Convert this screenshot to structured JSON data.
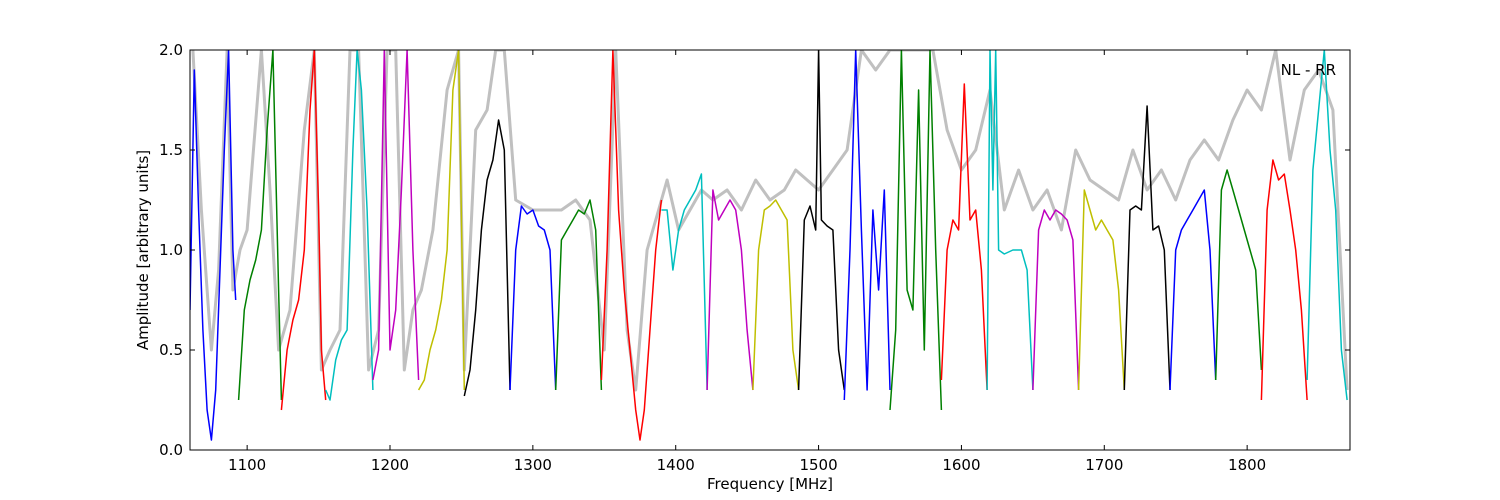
{
  "chart_data": {
    "type": "line",
    "title": "",
    "xlabel": "Frequency [MHz]",
    "ylabel": "Amplitude [arbitrary units]",
    "xlim": [
      1060,
      1872
    ],
    "ylim": [
      0.0,
      2.0
    ],
    "xticks": [
      1100,
      1200,
      1300,
      1400,
      1500,
      1600,
      1700,
      1800
    ],
    "yticks": [
      0.0,
      0.5,
      1.0,
      1.5,
      2.0
    ],
    "ytick_labels": [
      "0.0",
      "0.5",
      "1.0",
      "1.5",
      "2.0"
    ],
    "annotation": "NL - RR",
    "grid": false,
    "background_series_color": "#c0c0c0",
    "segment_color_cycle": [
      "#0000ff",
      "#008000",
      "#ff0000",
      "#00bfbf",
      "#bf00bf",
      "#bfbf00",
      "#000000"
    ],
    "series": [
      {
        "color": "#c0c0c0",
        "x": [
          1062,
          1068,
          1075,
          1080,
          1086,
          1090,
          1095,
          1100,
          1110,
          1116,
          1122,
          1130,
          1140,
          1147,
          1152,
          1158,
          1165,
          1172,
          1178,
          1185,
          1192,
          1198,
          1204,
          1210,
          1216,
          1222,
          1230,
          1240,
          1248,
          1252,
          1260,
          1268,
          1274,
          1280,
          1288,
          1300,
          1312,
          1320,
          1330,
          1340,
          1350,
          1358,
          1366,
          1372,
          1380,
          1388,
          1394,
          1402,
          1410,
          1418,
          1426,
          1436,
          1446,
          1456,
          1466,
          1476,
          1484,
          1492,
          1500,
          1510,
          1520,
          1530,
          1540,
          1550,
          1560,
          1570,
          1580,
          1590,
          1600,
          1610,
          1620,
          1630,
          1640,
          1650,
          1660,
          1670,
          1680,
          1690,
          1700,
          1710,
          1720,
          1730,
          1740,
          1750,
          1760,
          1770,
          1780,
          1790,
          1800,
          1810,
          1820,
          1830,
          1840,
          1850,
          1860,
          1870
        ],
        "y": [
          2.0,
          1.2,
          0.5,
          0.9,
          2.0,
          0.8,
          1.0,
          1.1,
          2.0,
          1.3,
          0.5,
          0.7,
          1.6,
          2.0,
          0.4,
          0.5,
          0.6,
          2.0,
          2.0,
          0.4,
          0.6,
          2.0,
          2.0,
          0.4,
          0.7,
          0.8,
          1.1,
          1.8,
          2.0,
          0.4,
          1.6,
          1.7,
          2.0,
          2.0,
          1.25,
          1.2,
          1.2,
          1.2,
          1.25,
          1.15,
          0.5,
          2.0,
          0.6,
          0.3,
          1.0,
          1.2,
          1.35,
          1.1,
          1.2,
          1.3,
          1.25,
          1.3,
          1.2,
          1.35,
          1.25,
          1.3,
          1.4,
          1.35,
          1.3,
          1.4,
          1.5,
          2.0,
          1.9,
          2.0,
          2.0,
          2.0,
          2.0,
          1.6,
          1.4,
          1.5,
          1.8,
          1.2,
          1.4,
          1.2,
          1.3,
          1.1,
          1.5,
          1.35,
          1.3,
          1.25,
          1.5,
          1.3,
          1.4,
          1.25,
          1.45,
          1.55,
          1.45,
          1.65,
          1.8,
          1.7,
          2.0,
          1.45,
          1.8,
          1.9,
          1.7,
          0.3
        ]
      },
      {
        "color": "#0000ff",
        "x": [
          1060,
          1063,
          1066,
          1069,
          1072,
          1075,
          1078,
          1081,
          1084,
          1087,
          1090,
          1092
        ],
        "y": [
          0.7,
          1.9,
          1.2,
          0.6,
          0.2,
          0.05,
          0.3,
          0.9,
          1.5,
          2.0,
          1.0,
          0.75
        ]
      },
      {
        "color": "#008000",
        "x": [
          1094,
          1098,
          1102,
          1106,
          1110,
          1114,
          1118,
          1122,
          1124
        ],
        "y": [
          0.25,
          0.7,
          0.85,
          0.95,
          1.1,
          1.6,
          2.0,
          0.8,
          0.25
        ]
      },
      {
        "color": "#ff0000",
        "x": [
          1124,
          1128,
          1132,
          1136,
          1140,
          1144,
          1147,
          1150,
          1152,
          1155
        ],
        "y": [
          0.2,
          0.5,
          0.65,
          0.75,
          1.0,
          1.7,
          2.0,
          1.2,
          0.5,
          0.25
        ]
      },
      {
        "color": "#00bfbf",
        "x": [
          1155,
          1158,
          1162,
          1166,
          1170,
          1174,
          1177,
          1180,
          1184,
          1188
        ],
        "y": [
          0.3,
          0.25,
          0.45,
          0.55,
          0.6,
          1.5,
          2.0,
          1.8,
          1.2,
          0.3
        ]
      },
      {
        "color": "#bf00bf",
        "x": [
          1188,
          1192,
          1196,
          1200,
          1204,
          1208,
          1212,
          1216,
          1220
        ],
        "y": [
          0.35,
          0.5,
          2.0,
          0.5,
          0.7,
          1.3,
          2.0,
          1.0,
          0.35
        ]
      },
      {
        "color": "#bfbf00",
        "x": [
          1220,
          1224,
          1228,
          1232,
          1236,
          1240,
          1244,
          1248,
          1252
        ],
        "y": [
          0.3,
          0.35,
          0.5,
          0.6,
          0.75,
          1.0,
          1.8,
          2.0,
          0.3
        ]
      },
      {
        "color": "#000000",
        "x": [
          1252,
          1256,
          1260,
          1264,
          1268,
          1272,
          1276,
          1280,
          1284
        ],
        "y": [
          0.27,
          0.4,
          0.7,
          1.1,
          1.35,
          1.45,
          1.65,
          1.5,
          0.3
        ]
      },
      {
        "color": "#0000ff",
        "x": [
          1284,
          1288,
          1292,
          1296,
          1300,
          1304,
          1308,
          1312,
          1316
        ],
        "y": [
          0.3,
          1.0,
          1.22,
          1.18,
          1.2,
          1.12,
          1.1,
          1.0,
          0.3
        ]
      },
      {
        "color": "#008000",
        "x": [
          1316,
          1320,
          1324,
          1328,
          1332,
          1336,
          1340,
          1344,
          1348
        ],
        "y": [
          0.3,
          1.05,
          1.1,
          1.15,
          1.2,
          1.18,
          1.25,
          1.1,
          0.3
        ]
      },
      {
        "color": "#ff0000",
        "x": [
          1348,
          1352,
          1356,
          1360,
          1364,
          1368,
          1372,
          1375,
          1378,
          1382,
          1386,
          1390
        ],
        "y": [
          0.35,
          1.0,
          2.0,
          1.2,
          0.8,
          0.5,
          0.2,
          0.05,
          0.2,
          0.6,
          1.0,
          1.25
        ]
      },
      {
        "color": "#00bfbf",
        "x": [
          1390,
          1394,
          1398,
          1402,
          1406,
          1410,
          1414,
          1418,
          1422
        ],
        "y": [
          1.2,
          1.2,
          0.9,
          1.1,
          1.2,
          1.25,
          1.3,
          1.38,
          0.3
        ]
      },
      {
        "color": "#bf00bf",
        "x": [
          1422,
          1426,
          1430,
          1434,
          1438,
          1442,
          1446,
          1450,
          1454
        ],
        "y": [
          0.3,
          1.3,
          1.15,
          1.2,
          1.25,
          1.2,
          1.0,
          0.6,
          0.3
        ]
      },
      {
        "color": "#bfbf00",
        "x": [
          1454,
          1458,
          1462,
          1466,
          1470,
          1474,
          1478,
          1482,
          1486
        ],
        "y": [
          0.3,
          1.0,
          1.2,
          1.22,
          1.25,
          1.2,
          1.15,
          0.5,
          0.3
        ]
      },
      {
        "color": "#000000",
        "x": [
          1486,
          1490,
          1494,
          1498,
          1500,
          1502,
          1506,
          1510,
          1514,
          1518
        ],
        "y": [
          0.3,
          1.15,
          1.22,
          1.1,
          2.0,
          1.15,
          1.12,
          1.1,
          0.5,
          0.3
        ]
      },
      {
        "color": "#0000ff",
        "x": [
          1518,
          1522,
          1526,
          1530,
          1534,
          1538,
          1542,
          1546,
          1550
        ],
        "y": [
          0.25,
          1.0,
          2.0,
          1.1,
          0.3,
          1.2,
          0.8,
          1.3,
          0.3
        ]
      },
      {
        "color": "#008000",
        "x": [
          1550,
          1554,
          1558,
          1562,
          1566,
          1570,
          1574,
          1578,
          1582,
          1586
        ],
        "y": [
          0.2,
          0.6,
          2.0,
          0.8,
          0.7,
          1.8,
          0.5,
          2.0,
          1.0,
          0.2
        ]
      },
      {
        "color": "#ff0000",
        "x": [
          1586,
          1590,
          1594,
          1598,
          1602,
          1606,
          1610,
          1614,
          1618
        ],
        "y": [
          0.35,
          1.0,
          1.15,
          1.1,
          1.83,
          1.15,
          1.2,
          0.9,
          0.3
        ]
      },
      {
        "color": "#00bfbf",
        "x": [
          1618,
          1620,
          1622,
          1624,
          1626,
          1630,
          1636,
          1642,
          1646,
          1650
        ],
        "y": [
          0.3,
          2.0,
          1.3,
          2.0,
          1.0,
          0.98,
          1.0,
          1.0,
          0.9,
          0.3
        ]
      },
      {
        "color": "#bf00bf",
        "x": [
          1650,
          1654,
          1658,
          1662,
          1666,
          1670,
          1674,
          1678,
          1682
        ],
        "y": [
          0.3,
          1.1,
          1.2,
          1.15,
          1.2,
          1.18,
          1.15,
          1.05,
          0.3
        ]
      },
      {
        "color": "#bfbf00",
        "x": [
          1682,
          1686,
          1690,
          1694,
          1698,
          1702,
          1706,
          1710,
          1714
        ],
        "y": [
          0.3,
          1.3,
          1.2,
          1.1,
          1.15,
          1.1,
          1.05,
          0.8,
          0.3
        ]
      },
      {
        "color": "#000000",
        "x": [
          1714,
          1718,
          1722,
          1726,
          1730,
          1734,
          1738,
          1742,
          1746
        ],
        "y": [
          0.3,
          1.2,
          1.22,
          1.2,
          1.72,
          1.1,
          1.12,
          1.0,
          0.3
        ]
      },
      {
        "color": "#0000ff",
        "x": [
          1746,
          1750,
          1754,
          1758,
          1762,
          1766,
          1770,
          1774,
          1778
        ],
        "y": [
          0.3,
          1.0,
          1.1,
          1.15,
          1.2,
          1.25,
          1.3,
          1.0,
          0.35
        ]
      },
      {
        "color": "#008000",
        "x": [
          1778,
          1782,
          1786,
          1790,
          1794,
          1798,
          1802,
          1806,
          1810
        ],
        "y": [
          0.35,
          1.3,
          1.4,
          1.3,
          1.2,
          1.1,
          1.0,
          0.9,
          0.4
        ]
      },
      {
        "color": "#ff0000",
        "x": [
          1810,
          1814,
          1818,
          1822,
          1826,
          1830,
          1834,
          1838,
          1842
        ],
        "y": [
          0.25,
          1.2,
          1.45,
          1.35,
          1.38,
          1.2,
          1.0,
          0.7,
          0.25
        ]
      },
      {
        "color": "#00bfbf",
        "x": [
          1842,
          1846,
          1850,
          1854,
          1858,
          1862,
          1866,
          1870
        ],
        "y": [
          0.35,
          1.4,
          1.7,
          2.0,
          1.5,
          1.2,
          0.5,
          0.25
        ]
      }
    ]
  }
}
